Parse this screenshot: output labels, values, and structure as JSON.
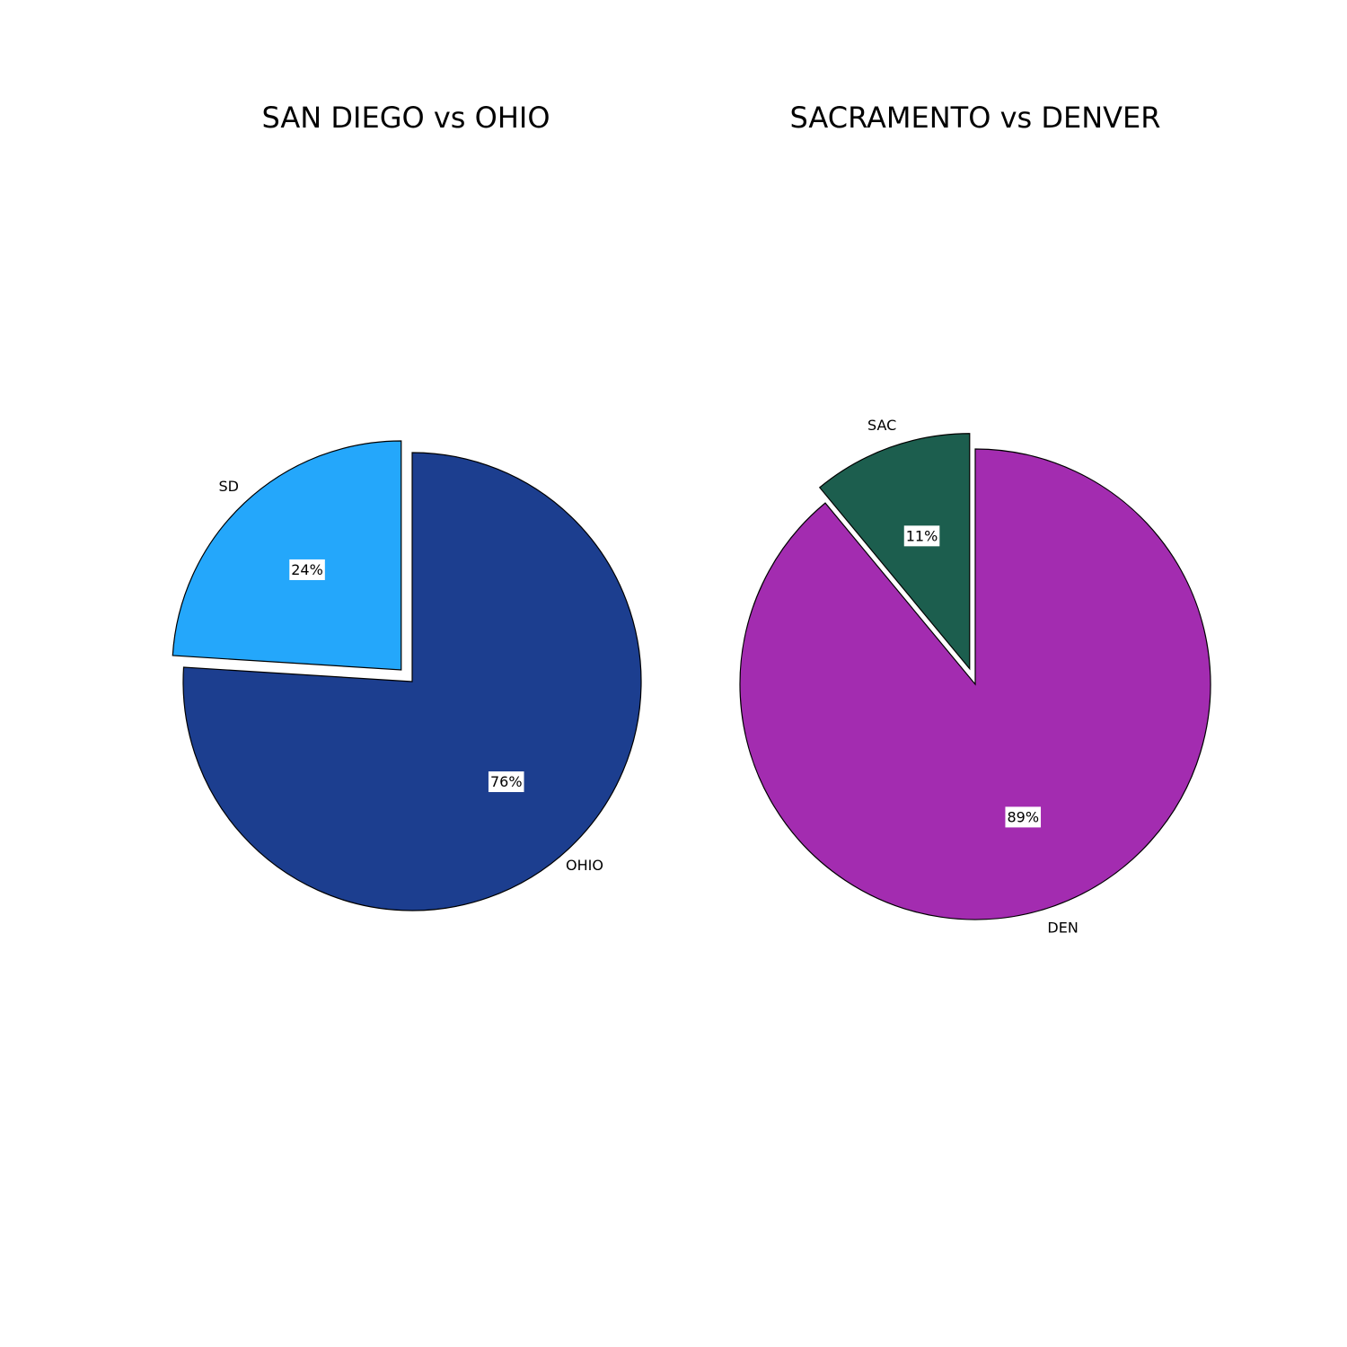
{
  "chart_data": [
    {
      "type": "pie",
      "title": "SAN DIEGO vs OHIO",
      "start_angle_deg": 90,
      "counterclock": true,
      "slices": [
        {
          "label": "SD",
          "value": 24,
          "pct_label": "24%",
          "color": "#24a7fb",
          "exploded": true
        },
        {
          "label": "OHIO",
          "value": 76,
          "pct_label": "76%",
          "color": "#1c3e8f",
          "exploded": false
        }
      ]
    },
    {
      "type": "pie",
      "title": "SACRAMENTO vs DENVER",
      "start_angle_deg": 90,
      "counterclock": true,
      "slices": [
        {
          "label": "SAC",
          "value": 11,
          "pct_label": "11%",
          "color": "#1c5e4e",
          "exploded": true
        },
        {
          "label": "DEN",
          "value": 89,
          "pct_label": "89%",
          "color": "#a32cb0",
          "exploded": false
        }
      ]
    }
  ]
}
